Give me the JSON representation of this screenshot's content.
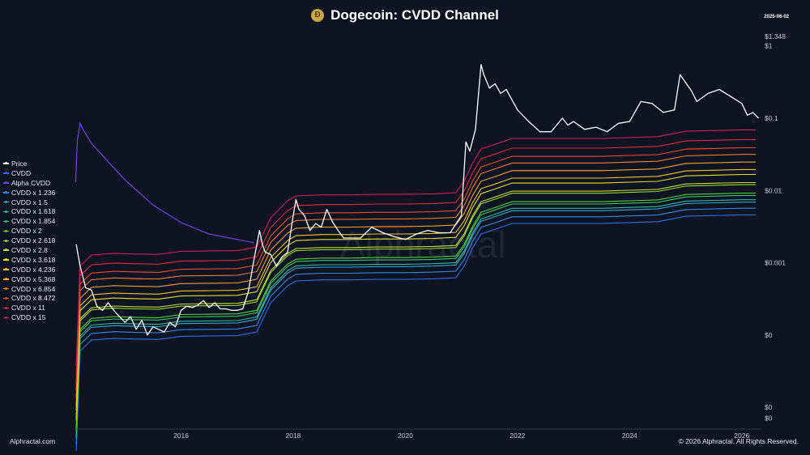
{
  "header": {
    "title": "Dogecoin: CVDD Channel",
    "logo_glyph": "Ð",
    "date": "2025-06-02"
  },
  "watermark": "Alphractal",
  "footer": {
    "left": "Alphractal.com",
    "right": "© 2026 Alphractal. All Rights Reserved."
  },
  "chart_data": {
    "type": "line",
    "title": "Dogecoin: CVDD Channel",
    "x_axis": {
      "range": [
        2014.1,
        2026.35
      ],
      "ticks": [
        2016,
        2018,
        2020,
        2022,
        2024,
        2026
      ]
    },
    "y_axis": {
      "scale": "log",
      "ticks": [
        {
          "value": 1.348,
          "label": "$1.348"
        },
        {
          "value": 1,
          "label": "$1"
        },
        {
          "value": 0.1,
          "label": "$0.1"
        },
        {
          "value": 0.01,
          "label": "$0.01"
        },
        {
          "value": 0.001,
          "label": "$0.001"
        },
        {
          "value": 0.0001,
          "label": "$0"
        },
        {
          "value": 1e-05,
          "label": "$0"
        },
        {
          "value": 7.1e-06,
          "label": "$0"
        }
      ]
    },
    "grid": false,
    "legend_position": "left",
    "series": [
      {
        "name": "Price",
        "color": "#ffffff"
      },
      {
        "name": "CVDD",
        "color": "#2f6cf0",
        "multiplier": 1
      },
      {
        "name": "Alpha CVDD",
        "color": "#7b3fe4"
      },
      {
        "name": "CVDD x 1.236",
        "color": "#3a86e8",
        "multiplier": 1.236
      },
      {
        "name": "CVDD x 1.5",
        "color": "#3aa6d6",
        "multiplier": 1.5
      },
      {
        "name": "CVDD x 1.618",
        "color": "#35b89a",
        "multiplier": 1.618
      },
      {
        "name": "CVDD x 1.854",
        "color": "#3fc46a",
        "multiplier": 1.854
      },
      {
        "name": "CVDD x 2",
        "color": "#5ccf3c",
        "multiplier": 2
      },
      {
        "name": "CVDD x 2.618",
        "color": "#98d635",
        "multiplier": 2.618
      },
      {
        "name": "CVDD x 2.8",
        "color": "#c8da32",
        "multiplier": 2.8
      },
      {
        "name": "CVDD x 3.618",
        "color": "#eadc2c",
        "multiplier": 3.618
      },
      {
        "name": "CVDD x 4.236",
        "color": "#f2c12a",
        "multiplier": 4.236
      },
      {
        "name": "CVDD x 5.368",
        "color": "#f5a02a",
        "multiplier": 5.368
      },
      {
        "name": "CVDD x 6.854",
        "color": "#f27a2b",
        "multiplier": 6.854
      },
      {
        "name": "CVDD x 8.472",
        "color": "#ec4c2e",
        "multiplier": 8.472
      },
      {
        "name": "CVDD x 11",
        "color": "#e22a3c",
        "multiplier": 11
      },
      {
        "name": "CVDD x 15",
        "color": "#d21c5c",
        "multiplier": 15
      }
    ],
    "cvdd_base": {
      "x": [
        2014.13,
        2014.2,
        2014.4,
        2014.8,
        2015.2,
        2015.6,
        2016.0,
        2016.5,
        2017.0,
        2017.35,
        2017.45,
        2017.6,
        2017.9,
        2018.05,
        2018.5,
        2019.0,
        2019.5,
        2020.0,
        2020.5,
        2020.9,
        2021.05,
        2021.2,
        2021.35,
        2021.6,
        2021.9,
        2022.5,
        2023.0,
        2023.5,
        2024.0,
        2024.5,
        2024.8,
        2025.0,
        2025.5,
        2026.0,
        2026.25
      ],
      "y": [
        2.5e-06,
        6e-05,
        8.5e-05,
        9e-05,
        8.8e-05,
        8.7e-05,
        9.6e-05,
        9.7e-05,
        9.8e-05,
        0.00011,
        0.00016,
        0.00028,
        0.00048,
        0.00056,
        0.00058,
        0.00058,
        0.00059,
        0.00059,
        0.0006,
        0.00062,
        0.0009,
        0.0016,
        0.0025,
        0.0029,
        0.0035,
        0.0035,
        0.0035,
        0.0035,
        0.0036,
        0.0037,
        0.0041,
        0.0044,
        0.0045,
        0.0046,
        0.0046
      ]
    },
    "alpha_cvdd": {
      "x": [
        2014.12,
        2014.15,
        2014.2,
        2014.25,
        2014.4,
        2014.7,
        2015.0,
        2015.5,
        2016.0,
        2016.5,
        2017.0,
        2017.3
      ],
      "y": [
        0.013,
        0.05,
        0.085,
        0.07,
        0.045,
        0.025,
        0.014,
        0.0063,
        0.0036,
        0.0025,
        0.0021,
        0.0019
      ]
    },
    "price": {
      "x": [
        2014.13,
        2014.2,
        2014.3,
        2014.4,
        2014.5,
        2014.6,
        2014.7,
        2014.8,
        2014.9,
        2015.0,
        2015.1,
        2015.2,
        2015.3,
        2015.4,
        2015.5,
        2015.6,
        2015.7,
        2015.8,
        2015.9,
        2016.0,
        2016.1,
        2016.2,
        2016.3,
        2016.4,
        2016.5,
        2016.6,
        2016.7,
        2016.8,
        2016.9,
        2017.0,
        2017.1,
        2017.2,
        2017.3,
        2017.4,
        2017.45,
        2017.5,
        2017.6,
        2017.7,
        2017.8,
        2017.9,
        2018.0,
        2018.05,
        2018.1,
        2018.2,
        2018.3,
        2018.4,
        2018.5,
        2018.6,
        2018.7,
        2018.8,
        2018.9,
        2019.0,
        2019.2,
        2019.4,
        2019.6,
        2019.8,
        2020.0,
        2020.2,
        2020.4,
        2020.6,
        2020.8,
        2021.0,
        2021.08,
        2021.15,
        2021.25,
        2021.35,
        2021.4,
        2021.5,
        2021.6,
        2021.7,
        2021.8,
        2021.9,
        2022.0,
        2022.2,
        2022.4,
        2022.6,
        2022.8,
        2022.9,
        2023.0,
        2023.2,
        2023.4,
        2023.6,
        2023.8,
        2024.0,
        2024.2,
        2024.4,
        2024.6,
        2024.8,
        2024.9,
        2025.0,
        2025.1,
        2025.2,
        2025.4,
        2025.6,
        2025.8,
        2026.0,
        2026.1,
        2026.2,
        2026.3
      ],
      "y": [
        0.0018,
        0.0009,
        0.00045,
        0.00042,
        0.00025,
        0.00022,
        0.00028,
        0.00022,
        0.00018,
        0.00015,
        0.00018,
        0.00012,
        0.00016,
        0.0001,
        0.00013,
        0.00012,
        0.00011,
        0.00015,
        0.00013,
        0.00022,
        0.00025,
        0.00024,
        0.00026,
        0.0003,
        0.00024,
        0.00028,
        0.00023,
        0.00023,
        0.00022,
        0.00022,
        0.00023,
        0.0004,
        0.0011,
        0.0028,
        0.0018,
        0.0014,
        0.0013,
        0.0009,
        0.0012,
        0.0014,
        0.0045,
        0.0075,
        0.0055,
        0.0045,
        0.0028,
        0.0035,
        0.0031,
        0.0055,
        0.0037,
        0.0028,
        0.0022,
        0.0022,
        0.0022,
        0.0031,
        0.0026,
        0.0023,
        0.0021,
        0.0025,
        0.0028,
        0.0026,
        0.0026,
        0.0045,
        0.047,
        0.035,
        0.07,
        0.55,
        0.4,
        0.26,
        0.3,
        0.22,
        0.25,
        0.18,
        0.13,
        0.09,
        0.065,
        0.065,
        0.1,
        0.08,
        0.09,
        0.07,
        0.075,
        0.065,
        0.085,
        0.09,
        0.17,
        0.16,
        0.12,
        0.13,
        0.4,
        0.31,
        0.24,
        0.17,
        0.22,
        0.25,
        0.2,
        0.16,
        0.11,
        0.12,
        0.1
      ]
    }
  }
}
